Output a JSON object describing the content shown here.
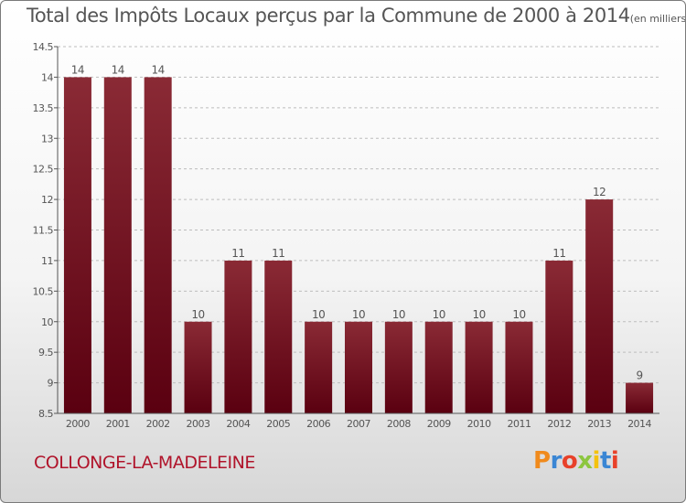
{
  "header": {
    "title": "Total des Impôts Locaux perçus par la Commune de 2000 à 2014",
    "unit": "(en milliers d'€)"
  },
  "commune": "COLLONGE-LA-MADELEINE",
  "logo": {
    "text": "Proxiti",
    "letter_colors": [
      "#f08a1c",
      "#3a86d4",
      "#e8412a",
      "#8cc63f",
      "#f4c20d",
      "#3a86d4",
      "#e8412a"
    ]
  },
  "colors": {
    "bar_top": "#8a2a35",
    "bar_bottom": "#5a0010",
    "axis": "#555555",
    "grid": "#bdbdbd",
    "text": "#555555"
  },
  "chart_data": {
    "type": "bar",
    "title": "Total des Impôts Locaux perçus par la Commune de 2000 à 2014",
    "categories": [
      "2000",
      "2001",
      "2002",
      "2003",
      "2004",
      "2005",
      "2006",
      "2007",
      "2008",
      "2009",
      "2010",
      "2011",
      "2012",
      "2013",
      "2014"
    ],
    "values": [
      14,
      14,
      14,
      10,
      11,
      11,
      10,
      10,
      10,
      10,
      10,
      10,
      11,
      12,
      9
    ],
    "data_labels": [
      "14",
      "14",
      "14",
      "10",
      "11",
      "11",
      "10",
      "10",
      "10",
      "10",
      "10",
      "10",
      "11",
      "12",
      "9"
    ],
    "ylim": [
      8.5,
      14.5
    ],
    "yticks": [
      8.5,
      9,
      9.5,
      10,
      10.5,
      11,
      11.5,
      12,
      12.5,
      13,
      13.5,
      14,
      14.5
    ],
    "ytick_labels": [
      "8.5",
      "9",
      "9.5",
      "10",
      "10.5",
      "11",
      "11.5",
      "12",
      "12.5",
      "13",
      "13.5",
      "14",
      "14.5"
    ],
    "grid": "dashed horizontal",
    "xlabel": "",
    "ylabel": ""
  }
}
